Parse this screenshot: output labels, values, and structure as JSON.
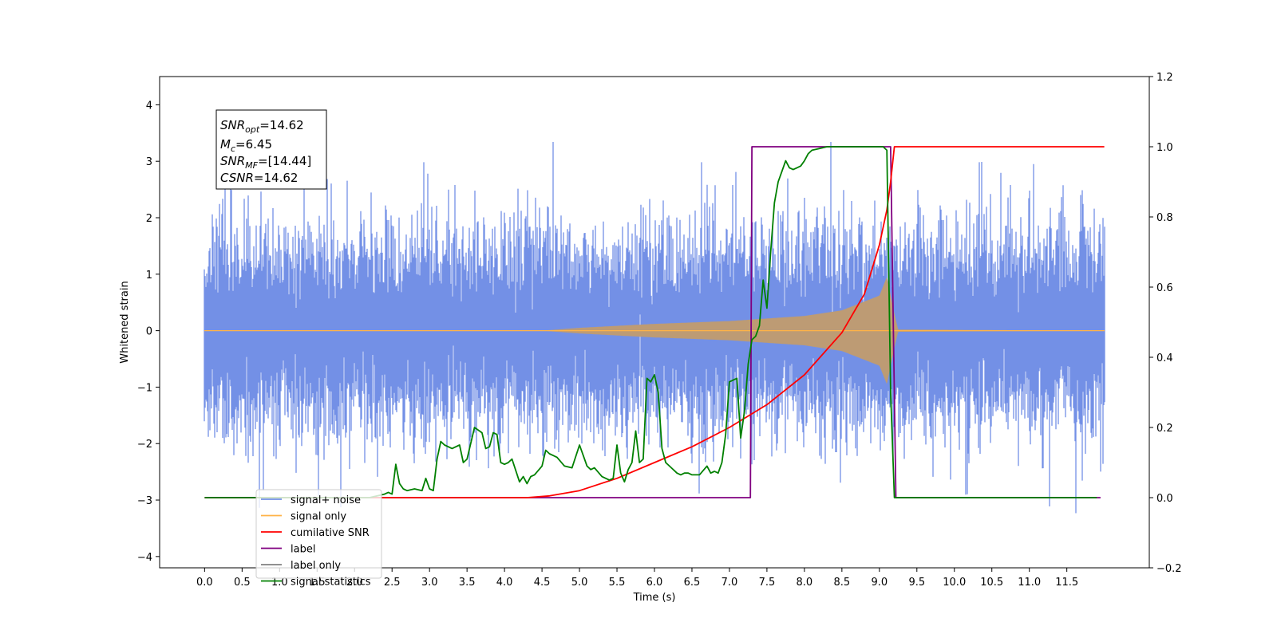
{
  "chart_data": {
    "type": "line",
    "title": "",
    "xlabel": "Time (s)",
    "ylabel": "Whitened strain",
    "xlim": [
      -0.6,
      12.6
    ],
    "ylim": [
      -4.2,
      4.5
    ],
    "y2lim": [
      -0.2,
      1.2
    ],
    "x_ticks": [
      "0.0",
      "0.5",
      "1.0",
      "1.5",
      "2.0",
      "2.5",
      "3.0",
      "3.5",
      "4.0",
      "4.5",
      "5.0",
      "5.5",
      "6.0",
      "6.5",
      "7.0",
      "7.5",
      "8.0",
      "8.5",
      "9.0",
      "9.5",
      "10.0",
      "10.5",
      "11.0",
      "11.5"
    ],
    "y_ticks": [
      "4",
      "3",
      "2",
      "1",
      "0",
      "−1",
      "−2",
      "−3",
      "−4"
    ],
    "y_tick_values": [
      4,
      3,
      2,
      1,
      0,
      -1,
      -2,
      -3,
      -4
    ],
    "y2_ticks": [
      "1.2",
      "1.0",
      "0.8",
      "0.6",
      "0.4",
      "0.2",
      "0.0",
      "−0.2"
    ],
    "y2_tick_values": [
      1.2,
      1.0,
      0.8,
      0.6,
      0.4,
      0.2,
      0.0,
      -0.2
    ],
    "grid": false,
    "legend_position": "lower-left",
    "annotation": {
      "snr_opt": {
        "base": "SNR",
        "sub": "opt",
        "value": "=14.62"
      },
      "mc": {
        "base": "M",
        "sub": "c",
        "value": "=6.45"
      },
      "snr_mf": {
        "base": "SNR",
        "sub": "MF",
        "value": "=[14.44]"
      },
      "csnr": {
        "base": "CSNR",
        "sub": "",
        "value": "=14.62"
      }
    },
    "series": [
      {
        "name": "signal+ noise",
        "axis": "left",
        "color": "#7390e6",
        "x_range": [
          0.0,
          12.0
        ],
        "noise_sigma": 1.0,
        "typical_envelope": [
          -1.7,
          1.7
        ],
        "peak_range": [
          -3.8,
          4.1
        ]
      },
      {
        "name": "signal only",
        "axis": "left",
        "color": "#ffb347",
        "fill_color": "#bd9b74",
        "chirp_envelope": {
          "x": [
            0.0,
            4.5,
            5.0,
            6.0,
            7.0,
            8.0,
            8.5,
            9.0,
            9.1,
            9.2,
            9.25,
            12.0
          ],
          "amp": [
            0.0,
            0.0,
            0.05,
            0.12,
            0.17,
            0.26,
            0.36,
            0.62,
            0.95,
            0.3,
            0.02,
            0.0
          ]
        }
      },
      {
        "name": "cumilative SNR",
        "axis": "right",
        "color": "#ff0000",
        "x": [
          0.0,
          4.3,
          4.6,
          5.0,
          5.5,
          6.0,
          6.5,
          7.0,
          7.5,
          8.0,
          8.5,
          8.8,
          9.0,
          9.1,
          9.15,
          9.2,
          12.0
        ],
        "y": [
          0.0,
          0.0,
          0.005,
          0.02,
          0.055,
          0.1,
          0.145,
          0.2,
          0.265,
          0.35,
          0.47,
          0.58,
          0.72,
          0.82,
          0.9,
          1.0,
          1.0
        ]
      },
      {
        "name": "label",
        "axis": "right",
        "color": "#800080",
        "x": [
          0.0,
          7.28,
          7.3,
          9.15,
          9.22,
          11.95
        ],
        "y": [
          0.0,
          0.0,
          1.0,
          1.0,
          0.0,
          0.0
        ]
      },
      {
        "name": "label only",
        "axis": "right",
        "color": "#808080",
        "hidden_in_plot": true
      },
      {
        "name": "signal statistics",
        "axis": "right",
        "color": "#008000",
        "x": [
          0.0,
          2.2,
          2.4,
          2.45,
          2.5,
          2.55,
          2.6,
          2.65,
          2.7,
          2.8,
          2.9,
          2.95,
          3.0,
          3.05,
          3.1,
          3.15,
          3.2,
          3.3,
          3.4,
          3.45,
          3.5,
          3.6,
          3.7,
          3.75,
          3.8,
          3.85,
          3.9,
          3.95,
          4.0,
          4.05,
          4.1,
          4.2,
          4.25,
          4.3,
          4.35,
          4.4,
          4.5,
          4.55,
          4.6,
          4.65,
          4.7,
          4.8,
          4.9,
          5.0,
          5.05,
          5.1,
          5.15,
          5.2,
          5.3,
          5.4,
          5.45,
          5.5,
          5.55,
          5.6,
          5.65,
          5.7,
          5.75,
          5.8,
          5.85,
          5.9,
          5.95,
          6.0,
          6.05,
          6.1,
          6.15,
          6.2,
          6.3,
          6.35,
          6.4,
          6.45,
          6.5,
          6.6,
          6.7,
          6.75,
          6.8,
          6.85,
          6.9,
          6.95,
          7.0,
          7.05,
          7.1,
          7.15,
          7.2,
          7.25,
          7.3,
          7.35,
          7.4,
          7.45,
          7.5,
          7.55,
          7.6,
          7.65,
          7.7,
          7.75,
          7.8,
          7.85,
          7.9,
          7.95,
          8.0,
          8.05,
          8.1,
          8.2,
          8.3,
          8.4,
          9.05,
          9.1,
          9.15,
          9.2,
          9.25,
          9.3,
          11.9
        ],
        "y": [
          0.0,
          0.0,
          0.01,
          0.015,
          0.01,
          0.095,
          0.04,
          0.025,
          0.02,
          0.025,
          0.02,
          0.055,
          0.025,
          0.02,
          0.11,
          0.16,
          0.15,
          0.14,
          0.15,
          0.1,
          0.11,
          0.2,
          0.185,
          0.14,
          0.145,
          0.185,
          0.18,
          0.1,
          0.095,
          0.1,
          0.11,
          0.045,
          0.06,
          0.04,
          0.06,
          0.065,
          0.09,
          0.135,
          0.125,
          0.12,
          0.115,
          0.09,
          0.085,
          0.15,
          0.12,
          0.09,
          0.08,
          0.085,
          0.06,
          0.05,
          0.055,
          0.15,
          0.07,
          0.045,
          0.08,
          0.1,
          0.19,
          0.1,
          0.11,
          0.34,
          0.33,
          0.35,
          0.3,
          0.14,
          0.1,
          0.09,
          0.07,
          0.065,
          0.07,
          0.07,
          0.065,
          0.065,
          0.09,
          0.07,
          0.075,
          0.07,
          0.1,
          0.18,
          0.33,
          0.335,
          0.34,
          0.17,
          0.245,
          0.38,
          0.45,
          0.46,
          0.49,
          0.62,
          0.54,
          0.7,
          0.84,
          0.9,
          0.93,
          0.96,
          0.94,
          0.935,
          0.94,
          0.945,
          0.96,
          0.98,
          0.99,
          0.995,
          1.0,
          1.0,
          1.0,
          0.99,
          0.3,
          0.0,
          0.0,
          0.0,
          0.0
        ]
      }
    ]
  }
}
